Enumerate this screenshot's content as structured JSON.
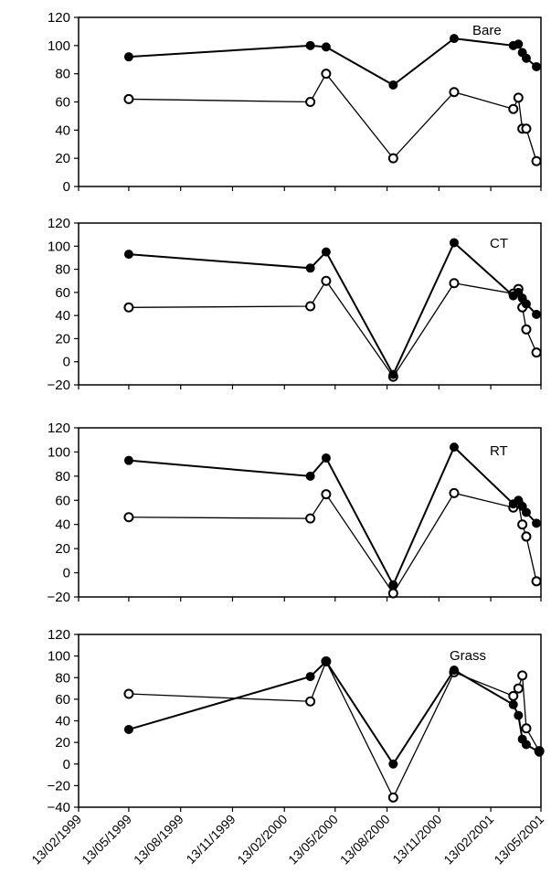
{
  "chart_data": [
    {
      "type": "line",
      "annotation": "Bare",
      "ylim": [
        0,
        120
      ],
      "yticks": [
        0,
        20,
        40,
        60,
        80,
        100,
        120
      ],
      "series": [
        {
          "marker": "filled",
          "points": [
            [
              "1999-05-13",
              92
            ],
            [
              "2000-03-30",
              100
            ],
            [
              "2000-04-27",
              99
            ],
            [
              "2000-08-24",
              72
            ],
            [
              "2000-12-10",
              105
            ],
            [
              "2001-03-25",
              100
            ],
            [
              "2001-04-03",
              101
            ],
            [
              "2001-04-10",
              95
            ],
            [
              "2001-04-17",
              91
            ],
            [
              "2001-05-05",
              85
            ]
          ]
        },
        {
          "marker": "open",
          "points": [
            [
              "1999-05-13",
              62
            ],
            [
              "2000-03-30",
              60
            ],
            [
              "2000-04-27",
              80
            ],
            [
              "2000-08-24",
              20
            ],
            [
              "2000-12-10",
              67
            ],
            [
              "2001-03-25",
              55
            ],
            [
              "2001-04-03",
              63
            ],
            [
              "2001-04-10",
              41
            ],
            [
              "2001-04-17",
              41
            ],
            [
              "2001-05-05",
              18
            ]
          ]
        }
      ]
    },
    {
      "type": "line",
      "annotation": "CT",
      "ylim": [
        -20,
        120
      ],
      "yticks": [
        -20,
        0,
        20,
        40,
        60,
        80,
        100,
        120
      ],
      "series": [
        {
          "marker": "filled",
          "points": [
            [
              "1999-05-13",
              93
            ],
            [
              "2000-03-30",
              81
            ],
            [
              "2000-04-27",
              95
            ],
            [
              "2000-08-24",
              -11
            ],
            [
              "2000-12-10",
              103
            ],
            [
              "2001-03-25",
              57
            ],
            [
              "2001-04-03",
              60
            ],
            [
              "2001-04-10",
              55
            ],
            [
              "2001-04-17",
              50
            ],
            [
              "2001-05-05",
              41
            ]
          ]
        },
        {
          "marker": "open",
          "points": [
            [
              "1999-05-13",
              47
            ],
            [
              "2000-03-30",
              48
            ],
            [
              "2000-04-27",
              70
            ],
            [
              "2000-08-24",
              -13
            ],
            [
              "2000-12-10",
              68
            ],
            [
              "2001-03-25",
              59
            ],
            [
              "2001-04-03",
              63
            ],
            [
              "2001-04-10",
              47
            ],
            [
              "2001-04-17",
              28
            ],
            [
              "2001-05-05",
              8
            ]
          ]
        }
      ]
    },
    {
      "type": "line",
      "annotation": "RT",
      "ylim": [
        -20,
        120
      ],
      "yticks": [
        -20,
        0,
        20,
        40,
        60,
        80,
        100,
        120
      ],
      "series": [
        {
          "marker": "filled",
          "points": [
            [
              "1999-05-13",
              93
            ],
            [
              "2000-03-30",
              80
            ],
            [
              "2000-04-27",
              95
            ],
            [
              "2000-08-24",
              -10
            ],
            [
              "2000-12-10",
              104
            ],
            [
              "2001-03-25",
              57
            ],
            [
              "2001-04-03",
              60
            ],
            [
              "2001-04-10",
              55
            ],
            [
              "2001-04-17",
              50
            ],
            [
              "2001-05-05",
              41
            ]
          ]
        },
        {
          "marker": "open",
          "points": [
            [
              "1999-05-13",
              46
            ],
            [
              "2000-03-30",
              45
            ],
            [
              "2000-04-27",
              65
            ],
            [
              "2000-08-24",
              -17
            ],
            [
              "2000-12-10",
              66
            ],
            [
              "2001-03-25",
              54
            ],
            [
              "2001-04-03",
              58
            ],
            [
              "2001-04-10",
              40
            ],
            [
              "2001-04-17",
              30
            ],
            [
              "2001-05-05",
              -7
            ]
          ]
        }
      ]
    },
    {
      "type": "line",
      "annotation": "Grass",
      "ylim": [
        -40,
        120
      ],
      "yticks": [
        -40,
        -20,
        0,
        20,
        40,
        60,
        80,
        100,
        120
      ],
      "xticks": [
        "13/02/1999",
        "13/05/1999",
        "13/08/1999",
        "13/11/1999",
        "13/02/2000",
        "13/05/2000",
        "13/08/2000",
        "13/11/2000",
        "13/02/2001",
        "13/05/2001"
      ],
      "series": [
        {
          "marker": "filled",
          "points": [
            [
              "1999-05-13",
              32
            ],
            [
              "2000-03-30",
              81
            ],
            [
              "2000-04-27",
              95
            ],
            [
              "2000-08-24",
              0
            ],
            [
              "2000-12-10",
              87
            ],
            [
              "2001-03-25",
              55
            ],
            [
              "2001-04-03",
              45
            ],
            [
              "2001-04-10",
              23
            ],
            [
              "2001-04-17",
              18
            ],
            [
              "2001-05-10",
              11
            ]
          ]
        },
        {
          "marker": "open",
          "points": [
            [
              "1999-05-13",
              65
            ],
            [
              "2000-03-30",
              58
            ],
            [
              "2000-04-27",
              95
            ],
            [
              "2000-08-24",
              -31
            ],
            [
              "2000-12-10",
              85
            ],
            [
              "2001-03-25",
              63
            ],
            [
              "2001-04-03",
              70
            ],
            [
              "2001-04-10",
              82
            ],
            [
              "2001-04-17",
              33
            ],
            [
              "2001-05-10",
              12
            ]
          ]
        }
      ]
    }
  ],
  "colors": {
    "axis": "#000000",
    "line": "#000000",
    "filled_marker": "#000000",
    "open_marker": "#ffffff"
  }
}
